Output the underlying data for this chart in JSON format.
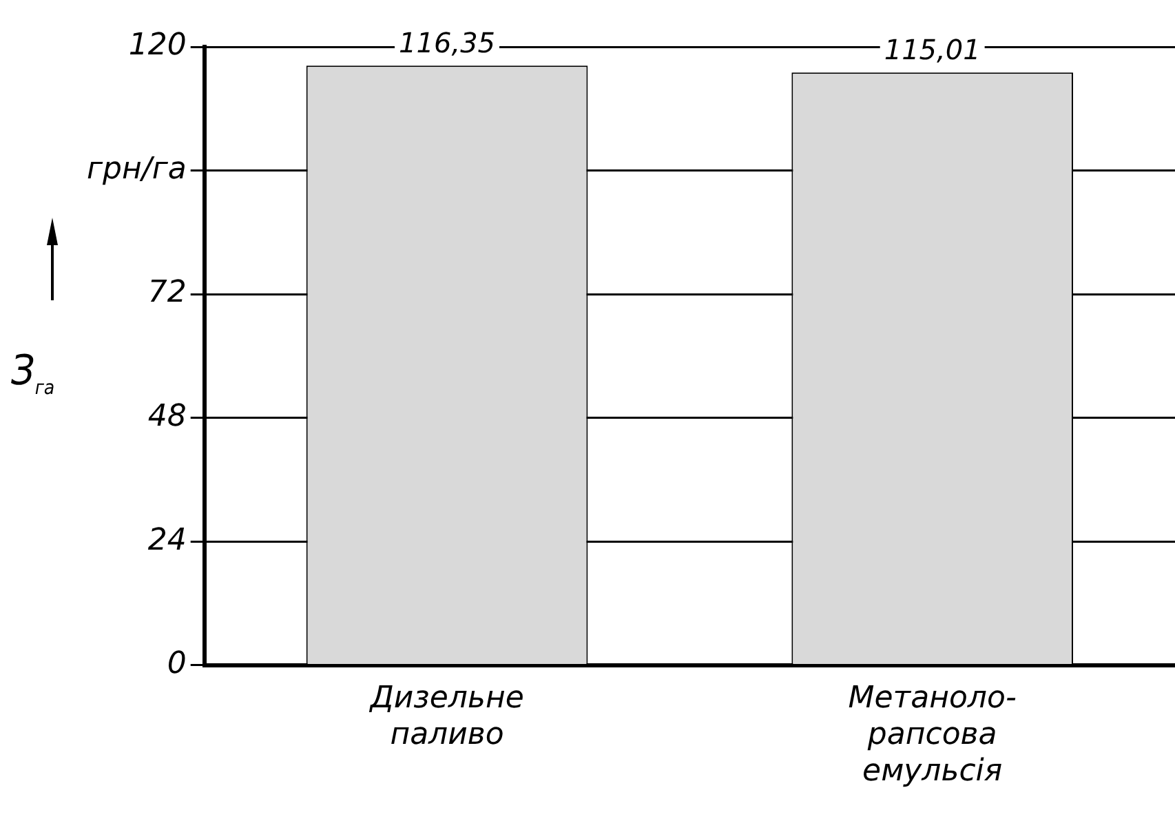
{
  "chart_data": {
    "type": "bar",
    "ylabel": "З$_{га}$",
    "categories": [
      "Дизельне\nпаливо",
      "Метаноло-\nрапсова\nемульсія"
    ],
    "values": [
      116.35,
      115.01
    ],
    "value_labels": [
      "116,35",
      "115,01"
    ],
    "color": "#d9d9d9",
    "ylim": [
      0,
      120
    ],
    "yticks": [
      0,
      24,
      48,
      72,
      {
        "value": 96,
        "label": "грн/га"
      },
      120
    ],
    "grid": "y"
  }
}
